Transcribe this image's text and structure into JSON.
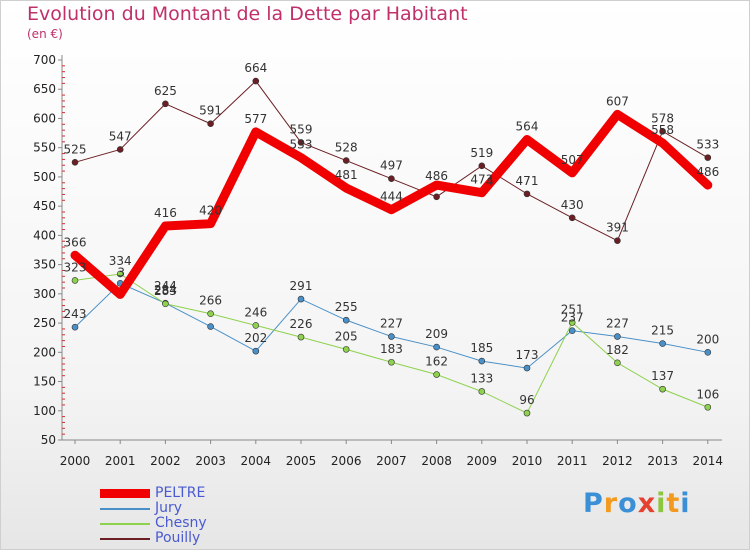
{
  "title": "Evolution du Montant de la Dette par Habitant",
  "subtitle": "(en €)",
  "logo": "Proxiti",
  "chart_data": {
    "type": "line",
    "title": "Evolution du Montant de la Dette par Habitant",
    "subtitle": "(en €)",
    "xlabel": "",
    "ylabel": "",
    "x": [
      "2000",
      "2001",
      "2002",
      "2003",
      "2004",
      "2005",
      "2006",
      "2007",
      "2008",
      "2009",
      "2010",
      "2011",
      "2012",
      "2013",
      "2014"
    ],
    "y_ticks": [
      50,
      100,
      150,
      200,
      250,
      300,
      350,
      400,
      450,
      500,
      550,
      600,
      650,
      700
    ],
    "ylim": [
      50,
      700
    ],
    "grid": false,
    "legend_position": "bottom-left",
    "series": [
      {
        "name": "Pouilly",
        "color": "#6b1f24",
        "width": 1,
        "values": [
          525,
          547,
          625,
          591,
          664,
          559,
          528,
          497,
          466,
          519,
          471,
          430,
          391,
          578,
          533
        ],
        "labels": [
          "525",
          "547",
          "625",
          "591",
          "664",
          "559",
          "528",
          "497",
          "",
          "519",
          "471",
          "430",
          "391",
          "578",
          "533"
        ]
      },
      {
        "name": "Jury",
        "color": "#4a90c8",
        "width": 1,
        "values": [
          243,
          318,
          284,
          244,
          202,
          291,
          255,
          227,
          209,
          185,
          173,
          237,
          227,
          215,
          200
        ],
        "labels": [
          "243",
          "",
          "284",
          "",
          "202",
          "291",
          "255",
          "227",
          "209",
          "185",
          "173",
          "237",
          "227",
          "215",
          "200"
        ]
      },
      {
        "name": "Chesny",
        "color": "#8ed14e",
        "width": 1,
        "values": [
          323,
          334,
          283,
          266,
          246,
          226,
          205,
          183,
          162,
          133,
          96,
          251,
          182,
          137,
          106
        ],
        "labels": [
          "323",
          "334",
          "283",
          "266",
          "246",
          "226",
          "205",
          "183",
          "162",
          "133",
          "96",
          "251",
          "182",
          "137",
          "106"
        ]
      },
      {
        "name": "PELTRE",
        "color": "#f00000",
        "width": 9,
        "values": [
          366,
          299,
          416,
          420,
          577,
          533,
          481,
          444,
          486,
          473,
          564,
          507,
          607,
          558,
          486
        ],
        "labels": [
          "366",
          "",
          "416",
          "420",
          "577",
          "533",
          "481",
          "444",
          "",
          "473",
          "564",
          "507",
          "607",
          "558",
          "486"
        ]
      }
    ],
    "extra_labels": [
      "3",
      "244",
      "486",
      "4"
    ]
  },
  "legend": {
    "items": [
      {
        "name": "PELTRE",
        "color": "#f00000"
      },
      {
        "name": "Jury",
        "color": "#4a90c8"
      },
      {
        "name": "Chesny",
        "color": "#8ed14e"
      },
      {
        "name": "Pouilly",
        "color": "#6b1f24"
      }
    ]
  }
}
